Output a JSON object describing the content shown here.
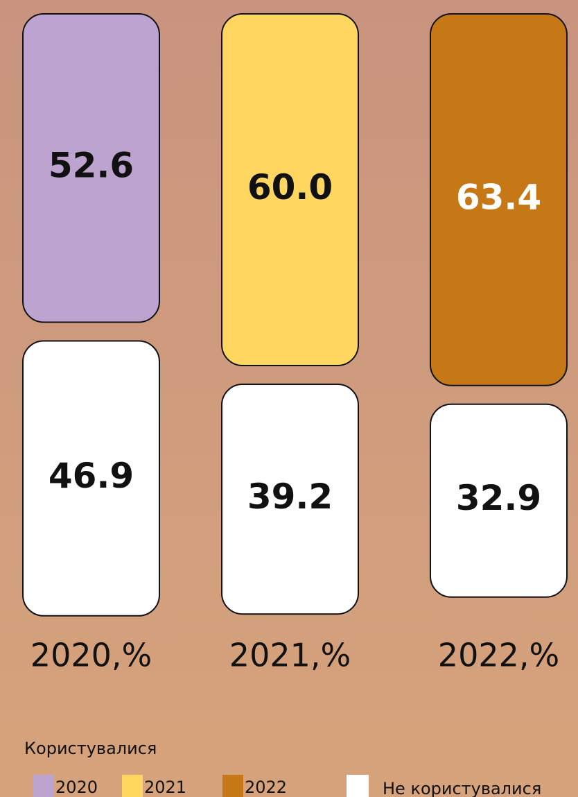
{
  "chart_data": {
    "type": "bar",
    "categories": [
      "2020,%",
      "2021,%",
      "2022,%"
    ],
    "legend_title": "Користувалися",
    "series": [
      {
        "name": "Користувалися",
        "colors": [
          "#bda3cf",
          "#ffd660",
          "#c67816"
        ],
        "label_colors": [
          "#111111",
          "#111111",
          "#ffffff"
        ],
        "values": [
          52.6,
          60.0,
          63.4
        ],
        "value_labels": [
          "52.6",
          "60.0",
          "63.4"
        ],
        "legend_labels": [
          "2020",
          "2021",
          "2022"
        ]
      },
      {
        "name": "Не користувалися",
        "color": "#ffffff",
        "values": [
          46.9,
          39.2,
          32.9
        ],
        "value_labels": [
          "46.9",
          "39.2",
          "32.9"
        ]
      }
    ]
  }
}
